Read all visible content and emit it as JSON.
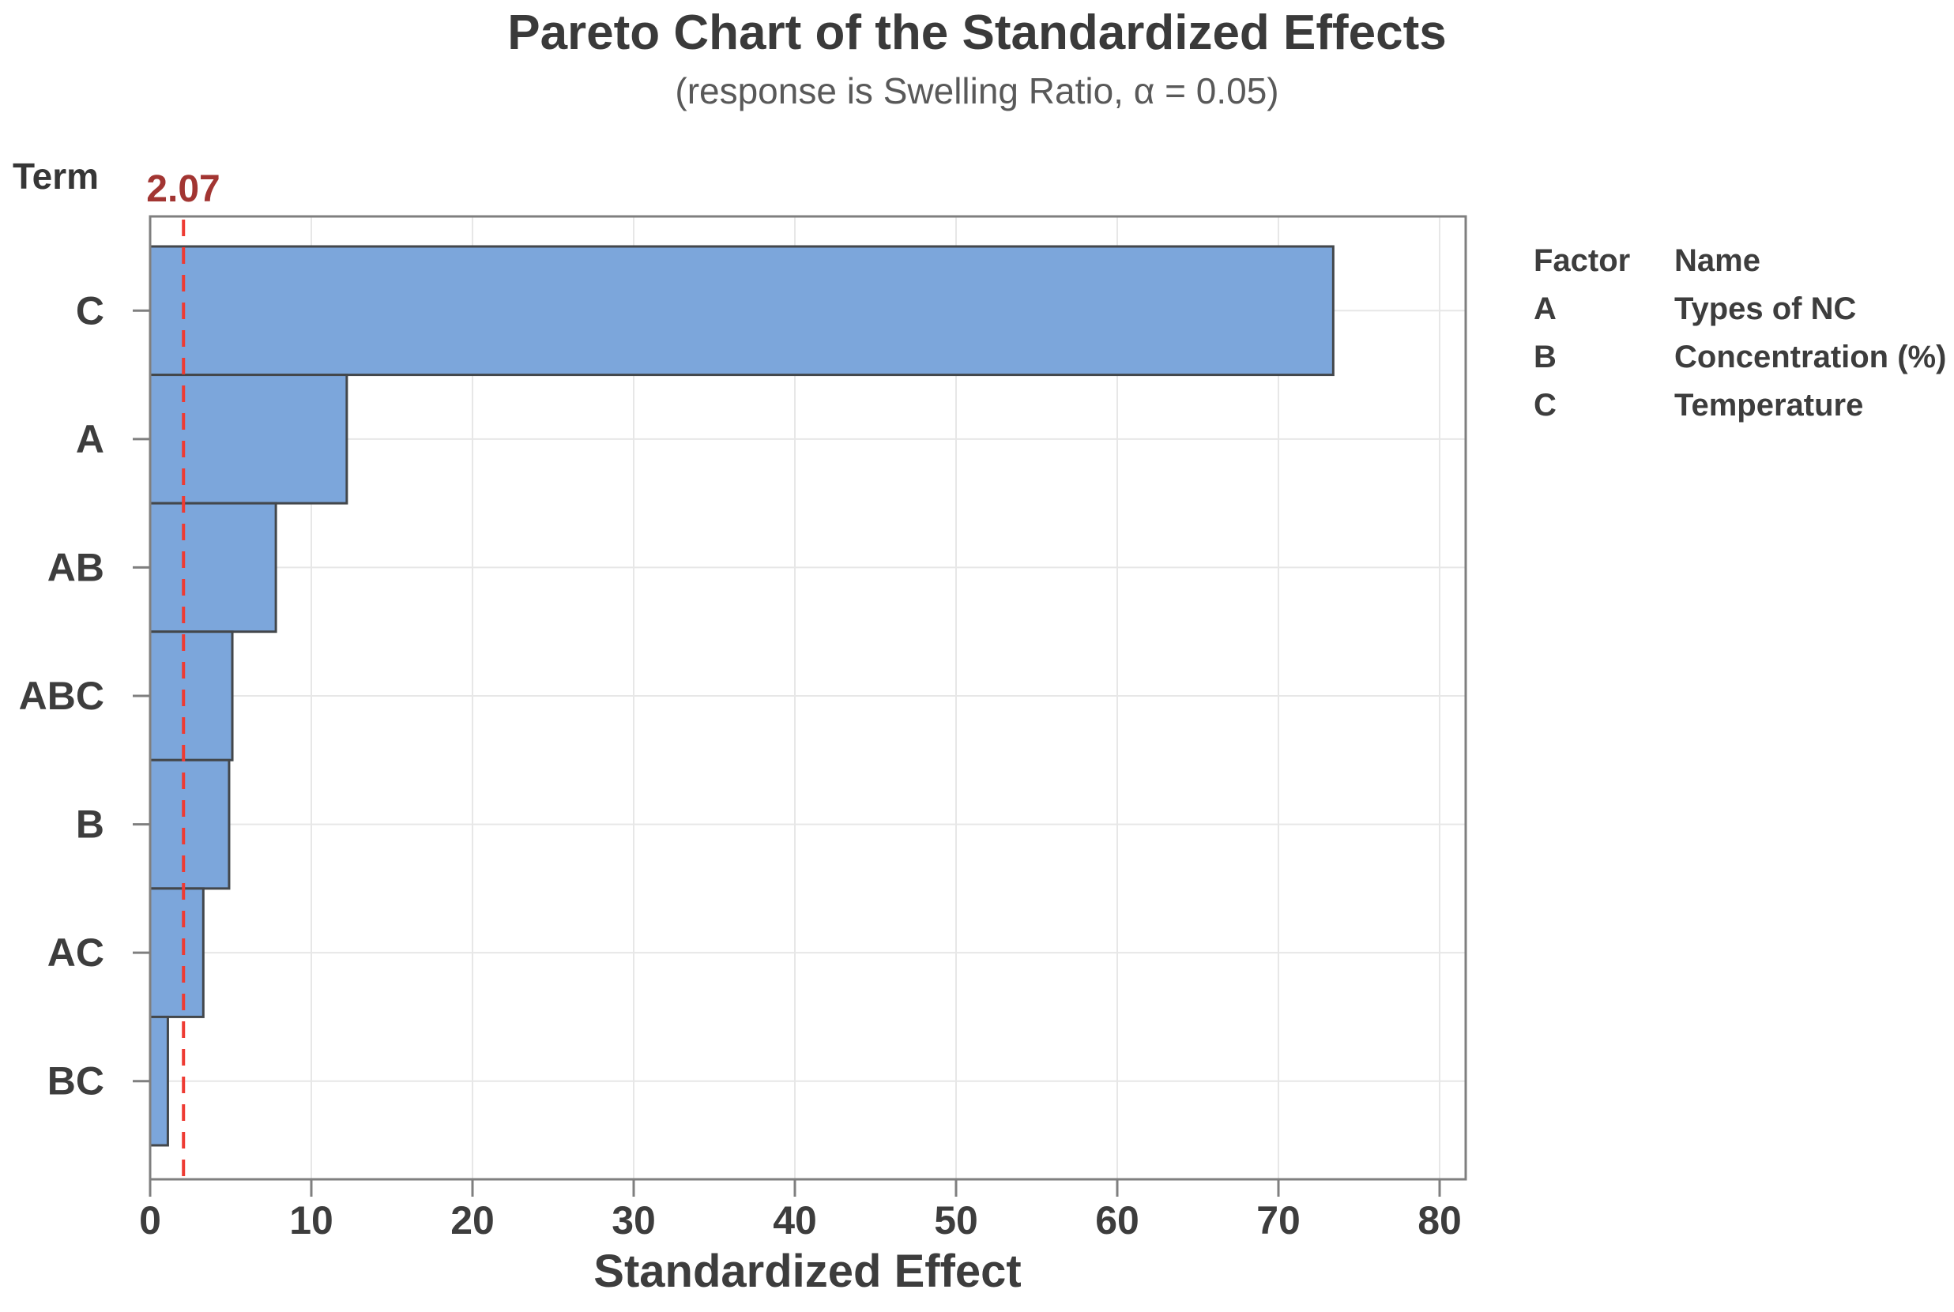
{
  "title": "Pareto Chart of the Standardized Effects",
  "subtitle": "(response is Swelling Ratio, α = 0.05)",
  "chart_data": {
    "type": "bar",
    "orientation": "horizontal",
    "title": "Pareto Chart of the Standardized Effects",
    "subtitle": "(response is Swelling Ratio, α = 0.05)",
    "ylabel": "Term",
    "xlabel": "Standardized Effect",
    "categories": [
      "C",
      "A",
      "AB",
      "ABC",
      "B",
      "AC",
      "BC"
    ],
    "values": [
      73.4,
      12.2,
      7.8,
      5.1,
      4.9,
      3.3,
      1.1
    ],
    "x_ticks": [
      0,
      10,
      20,
      30,
      40,
      50,
      60,
      70,
      80
    ],
    "xlim": [
      0,
      81.6
    ],
    "grid": true,
    "reference_value": 2.07,
    "reference_label": "2.07",
    "bar_color": "#7CA6DB",
    "bar_border_color": "#43474B",
    "gridline_color": "#E7E7E7",
    "frame_color": "#7F7F7F",
    "reference_line_color": "#EE3B33",
    "reference_label_color": "#A23532",
    "text_color": "#3D3D3D"
  },
  "legend": {
    "headers": {
      "factor": "Factor",
      "name": "Name"
    },
    "rows": [
      {
        "factor": "A",
        "name": "Types of NC"
      },
      {
        "factor": "B",
        "name": "Concentration (%)"
      },
      {
        "factor": "C",
        "name": "Temperature"
      }
    ]
  }
}
